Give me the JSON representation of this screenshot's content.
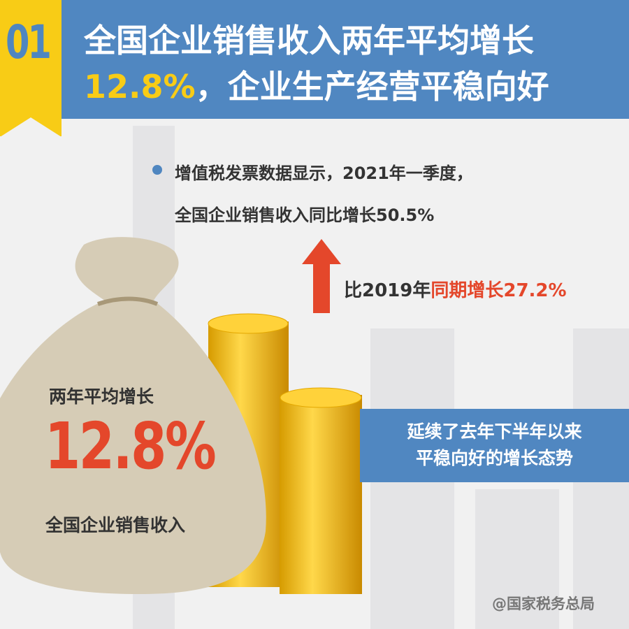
{
  "badge_number": "01",
  "header": {
    "line1": "全国企业销售收入两年平均增长",
    "line2_highlight": "12.8%",
    "line2_rest": "，企业生产经营平稳向好"
  },
  "bullet": {
    "line1": "增值税发票数据显示，2021年一季度，",
    "line2": "全国企业销售收入同比增长50.5%"
  },
  "comparison": {
    "prefix": "比2019年",
    "highlight": "同期增长27.2%"
  },
  "bag": {
    "label_top": "两年平均增长",
    "value": "12.8%",
    "label_bottom": "全国企业销售收入"
  },
  "callout": {
    "line1": "延续了去年下半年以来",
    "line2": "平稳向好的增长态势"
  },
  "credit": "@国家税务总局",
  "colors": {
    "blue": "#5087c1",
    "yellow": "#f8cc16",
    "red": "#e4472b"
  },
  "icons": {
    "arrow": "arrow-up-icon",
    "bullet": "bullet-dot-icon"
  }
}
